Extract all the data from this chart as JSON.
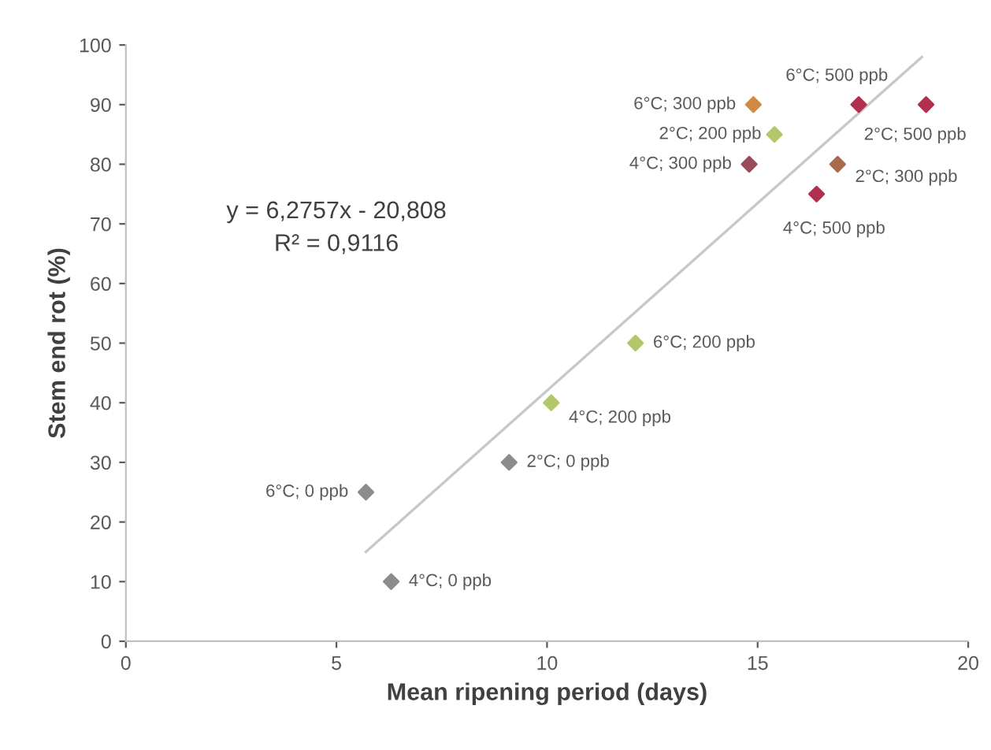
{
  "chart_data": {
    "type": "scatter",
    "xlabel": "Mean ripening period (days)",
    "ylabel": "Stem end rot (%)",
    "xlim": [
      0,
      20
    ],
    "ylim": [
      0,
      100
    ],
    "xticks": [
      0,
      5,
      10,
      15,
      20
    ],
    "yticks": [
      0,
      10,
      20,
      30,
      40,
      50,
      60,
      70,
      80,
      90,
      100
    ],
    "grid": false,
    "legend": false,
    "series": [
      {
        "marker": "diamond",
        "x": [
          5.7,
          6.3,
          9.1,
          10.1,
          12.1,
          14.9,
          15.4,
          14.8,
          17.4,
          19.0,
          16.9,
          16.4
        ],
        "values": [
          25,
          10,
          30,
          40,
          50,
          90,
          85,
          80,
          90,
          90,
          80,
          75
        ],
        "colors": [
          "#8c8c8c",
          "#8c8c8c",
          "#8c8c8c",
          "#b3c86a",
          "#b3c86a",
          "#d08a45",
          "#b3c86a",
          "#9a4c5a",
          "#b0304e",
          "#b0304e",
          "#a86a4c",
          "#b0304e"
        ]
      },
      {
        "type": "line",
        "x": [
          5.7,
          18.9
        ],
        "values": [
          15,
          98
        ],
        "color": "#c8c8c8",
        "line_style": "solid"
      }
    ],
    "annotations": [
      {
        "text": "6°C; 0 ppb",
        "x": 5.7,
        "y": 25
      },
      {
        "text": "4°C; 0 ppb",
        "x": 6.3,
        "y": 10
      },
      {
        "text": "2°C; 0 ppb",
        "x": 9.1,
        "y": 30
      },
      {
        "text": "4°C; 200 ppb",
        "x": 10.1,
        "y": 40
      },
      {
        "text": "6°C; 200 ppb",
        "x": 12.1,
        "y": 50
      },
      {
        "text": "6°C; 300 ppb",
        "x": 14.9,
        "y": 90
      },
      {
        "text": "2°C; 200 ppb",
        "x": 15.4,
        "y": 85
      },
      {
        "text": "4°C; 300 ppb",
        "x": 14.8,
        "y": 80
      },
      {
        "text": "6°C; 500 ppb",
        "x": 17.4,
        "y": 90
      },
      {
        "text": "2°C; 500 ppb",
        "x": 19.0,
        "y": 90
      },
      {
        "text": "2°C; 300 ppb",
        "x": 16.9,
        "y": 80
      },
      {
        "text": "4°C; 500 ppb",
        "x": 16.4,
        "y": 75
      },
      "y = 6,2757x - 20,808",
      "R² = 0,9116"
    ]
  }
}
